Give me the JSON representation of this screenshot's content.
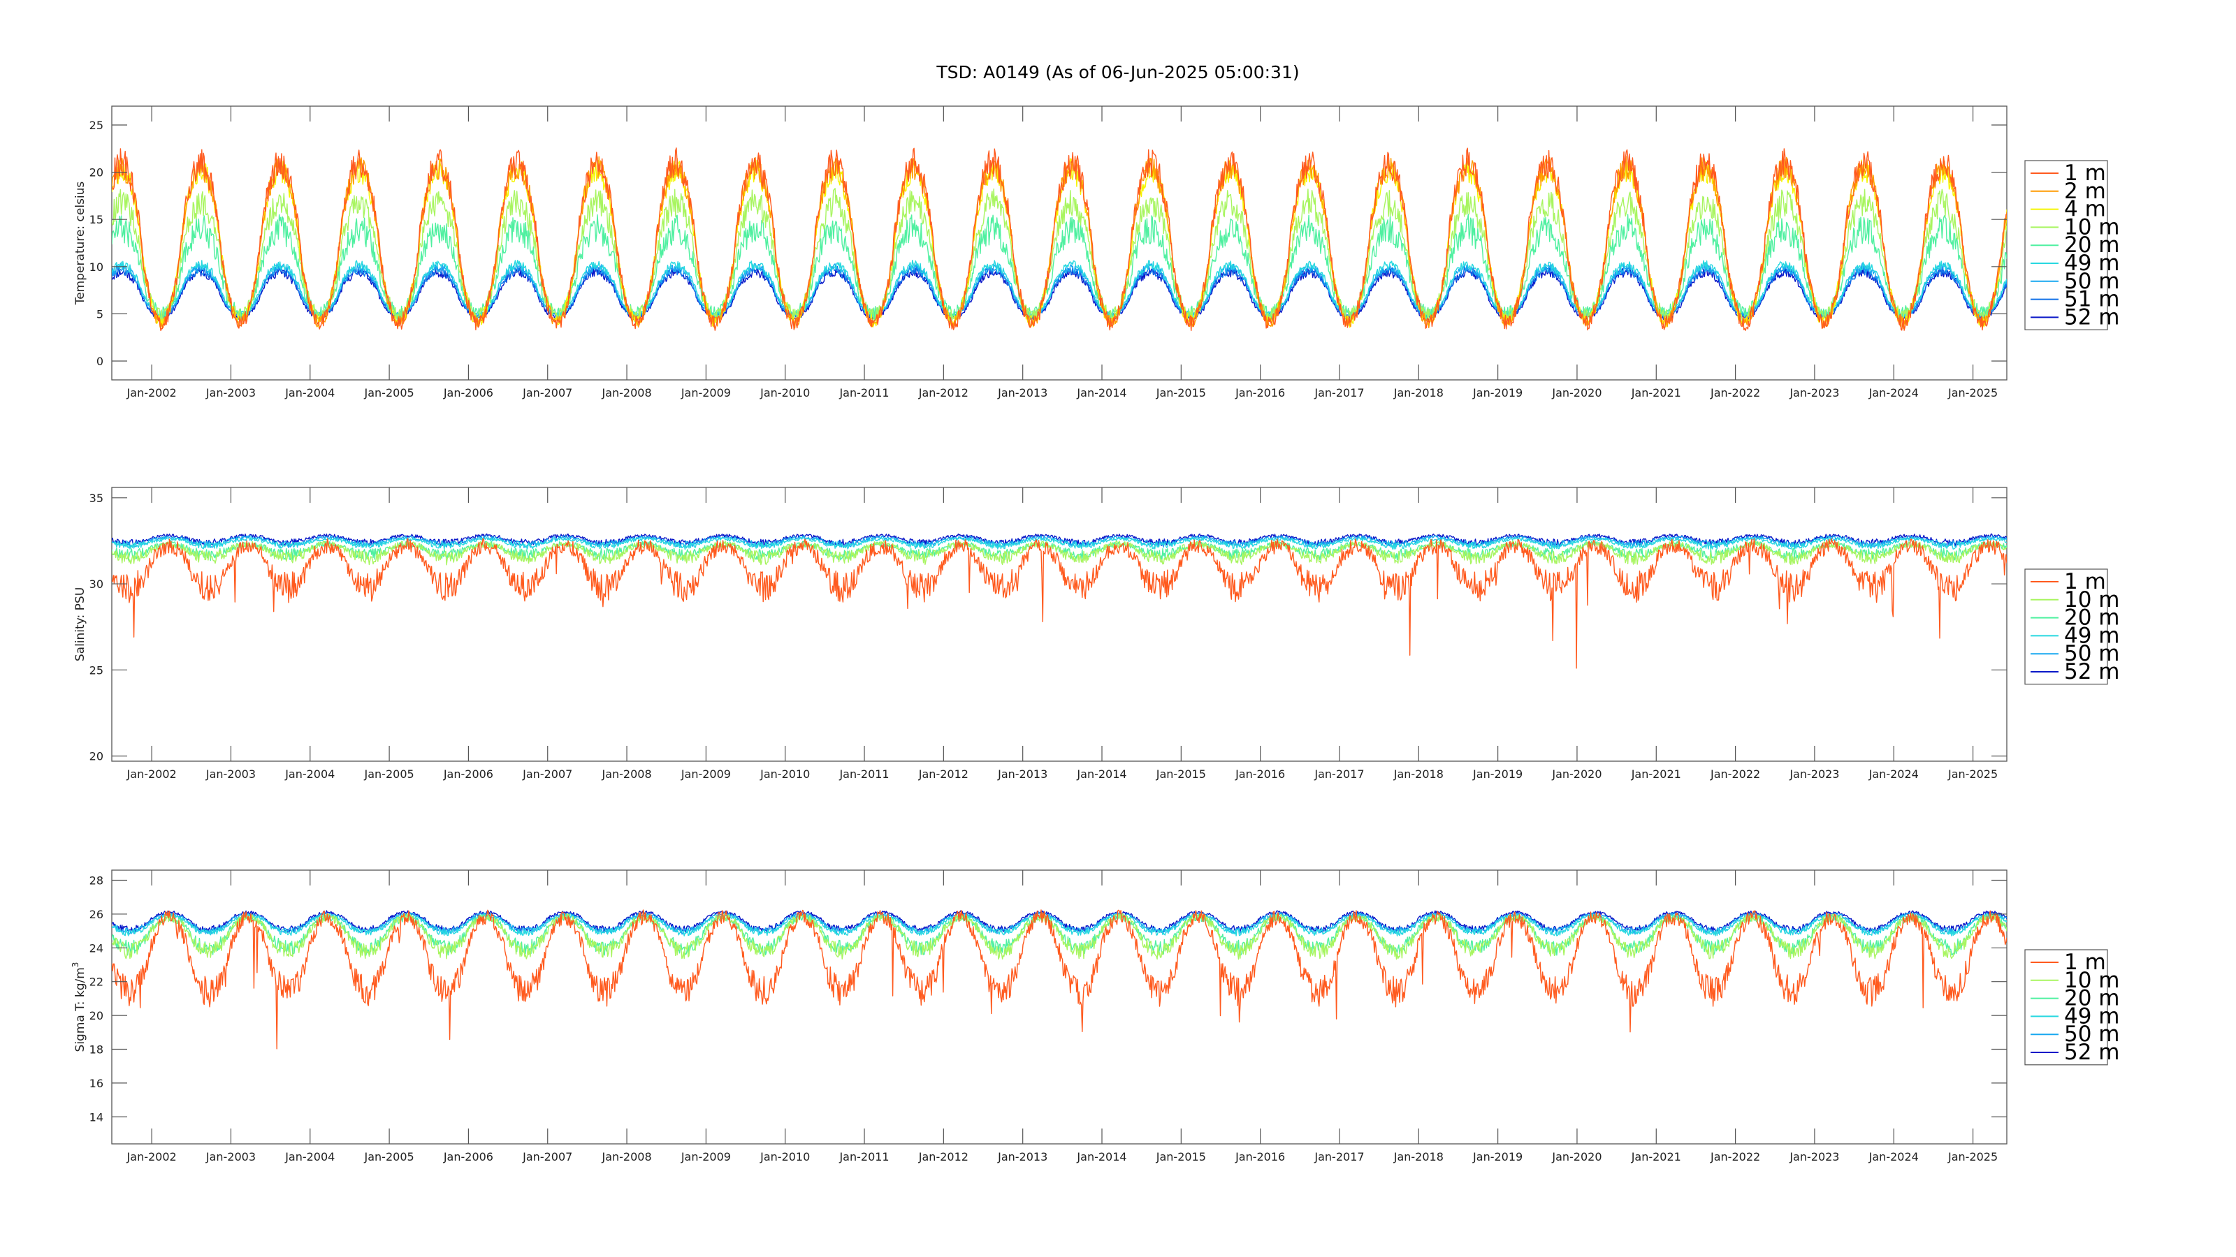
{
  "figure": {
    "title": "TSD: A0149 (As of 06-Jun-2025 05:00:31)"
  },
  "chart_data": [
    {
      "type": "line",
      "ylabel": "Temperature:  celsius",
      "xlim": [
        "2001-07-01",
        "2025-06-06"
      ],
      "ylim": [
        -2,
        27
      ],
      "yticks": [
        0,
        5,
        10,
        15,
        20,
        25
      ],
      "xticks": [
        "Jan-2002",
        "Jan-2003",
        "Jan-2004",
        "Jan-2005",
        "Jan-2006",
        "Jan-2007",
        "Jan-2008",
        "Jan-2009",
        "Jan-2010",
        "Jan-2011",
        "Jan-2012",
        "Jan-2013",
        "Jan-2014",
        "Jan-2015",
        "Jan-2016",
        "Jan-2017",
        "Jan-2018",
        "Jan-2019",
        "Jan-2020",
        "Jan-2021",
        "Jan-2022",
        "Jan-2023",
        "Jan-2024",
        "Jan-2025"
      ],
      "grid": false,
      "legend_position": "right",
      "series": [
        {
          "name": "1 m",
          "color": "#ff5a1e",
          "baseline": 12.5,
          "amp": 8.5,
          "noise": 1.6,
          "dips": 0
        },
        {
          "name": "2 m",
          "color": "#ff9a00",
          "baseline": 12.3,
          "amp": 8.2,
          "noise": 1.3,
          "dips": 0
        },
        {
          "name": "4 m",
          "color": "#f5f500",
          "baseline": 12.2,
          "amp": 8.0,
          "noise": 1.3,
          "dips": 0
        },
        {
          "name": "10 m",
          "color": "#a8f560",
          "baseline": 10.8,
          "amp": 6.0,
          "noise": 1.5,
          "dips": 0
        },
        {
          "name": "20 m",
          "color": "#4ff0a0",
          "baseline": 9.5,
          "amp": 4.5,
          "noise": 1.6,
          "dips": 0
        },
        {
          "name": "49 m",
          "color": "#28d8e0",
          "baseline": 7.6,
          "amp": 2.6,
          "noise": 0.5,
          "dips": 0
        },
        {
          "name": "50 m",
          "color": "#18a8f0",
          "baseline": 7.4,
          "amp": 2.5,
          "noise": 0.5,
          "dips": 0
        },
        {
          "name": "51 m",
          "color": "#1070e8",
          "baseline": 7.2,
          "amp": 2.4,
          "noise": 0.5,
          "dips": 0
        },
        {
          "name": "52 m",
          "color": "#0a18c8",
          "baseline": 7.0,
          "amp": 2.4,
          "noise": 0.5,
          "dips": 0
        }
      ]
    },
    {
      "type": "line",
      "ylabel": "Salinity:  PSU",
      "xlim": [
        "2001-07-01",
        "2025-06-06"
      ],
      "ylim": [
        19.7,
        35.6
      ],
      "yticks": [
        20,
        25,
        30,
        35
      ],
      "xticks": [
        "Jan-2002",
        "Jan-2003",
        "Jan-2004",
        "Jan-2005",
        "Jan-2006",
        "Jan-2007",
        "Jan-2008",
        "Jan-2009",
        "Jan-2010",
        "Jan-2011",
        "Jan-2012",
        "Jan-2013",
        "Jan-2014",
        "Jan-2015",
        "Jan-2016",
        "Jan-2017",
        "Jan-2018",
        "Jan-2019",
        "Jan-2020",
        "Jan-2021",
        "Jan-2022",
        "Jan-2023",
        "Jan-2024",
        "Jan-2025"
      ],
      "grid": false,
      "legend_position": "right",
      "series": [
        {
          "name": "1 m",
          "color": "#ff5a1e",
          "baseline": 31.0,
          "amp": -1.2,
          "noise": 0.9,
          "dips": 9
        },
        {
          "name": "10 m",
          "color": "#a8f560",
          "baseline": 31.9,
          "amp": -0.4,
          "noise": 0.4,
          "dips": 0
        },
        {
          "name": "20 m",
          "color": "#4ff0a0",
          "baseline": 32.0,
          "amp": -0.3,
          "noise": 0.35,
          "dips": 0
        },
        {
          "name": "49 m",
          "color": "#28d8e0",
          "baseline": 32.4,
          "amp": -0.2,
          "noise": 0.2,
          "dips": 0
        },
        {
          "name": "50 m",
          "color": "#18a8f0",
          "baseline": 32.5,
          "amp": -0.2,
          "noise": 0.2,
          "dips": 0
        },
        {
          "name": "52 m",
          "color": "#0a18c8",
          "baseline": 32.6,
          "amp": -0.2,
          "noise": 0.2,
          "dips": 0
        }
      ]
    },
    {
      "type": "line",
      "ylabel": "Sigma T:  kg/m",
      "ylabel_superscript": "3",
      "xlim": [
        "2001-07-01",
        "2025-06-06"
      ],
      "ylim": [
        12.4,
        28.6
      ],
      "yticks": [
        14,
        16,
        18,
        20,
        22,
        24,
        26,
        28
      ],
      "xticks": [
        "Jan-2002",
        "Jan-2003",
        "Jan-2004",
        "Jan-2005",
        "Jan-2006",
        "Jan-2007",
        "Jan-2008",
        "Jan-2009",
        "Jan-2010",
        "Jan-2011",
        "Jan-2012",
        "Jan-2013",
        "Jan-2014",
        "Jan-2015",
        "Jan-2016",
        "Jan-2017",
        "Jan-2018",
        "Jan-2019",
        "Jan-2020",
        "Jan-2021",
        "Jan-2022",
        "Jan-2023",
        "Jan-2024",
        "Jan-2025"
      ],
      "grid": false,
      "legend_position": "right",
      "series": [
        {
          "name": "1 m",
          "color": "#ff5a1e",
          "baseline": 23.6,
          "amp": -2.2,
          "noise": 0.9,
          "dips": 7
        },
        {
          "name": "10 m",
          "color": "#a8f560",
          "baseline": 24.8,
          "amp": -1.0,
          "noise": 0.5,
          "dips": 0
        },
        {
          "name": "20 m",
          "color": "#4ff0a0",
          "baseline": 24.9,
          "amp": -0.9,
          "noise": 0.45,
          "dips": 0
        },
        {
          "name": "49 m",
          "color": "#28d8e0",
          "baseline": 25.4,
          "amp": -0.5,
          "noise": 0.2,
          "dips": 0
        },
        {
          "name": "50 m",
          "color": "#18a8f0",
          "baseline": 25.5,
          "amp": -0.5,
          "noise": 0.2,
          "dips": 0
        },
        {
          "name": "52 m",
          "color": "#0a18c8",
          "baseline": 25.6,
          "amp": -0.5,
          "noise": 0.2,
          "dips": 0
        }
      ]
    }
  ]
}
